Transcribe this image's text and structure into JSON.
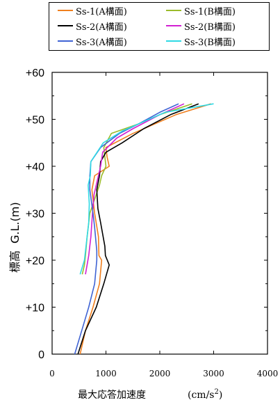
{
  "chart_data": {
    "type": "line",
    "title": "",
    "xlabel": "最大応答加速度",
    "xlabel_unit": "(cm/s",
    "xlabel_unit_exp": "2",
    "xlabel_unit_close": ")",
    "ylabel": "標高 G.L.(m)",
    "ylabel_parts": [
      "標高",
      "G.L.(m)"
    ],
    "xlim": [
      0,
      4000
    ],
    "ylim": [
      0,
      60
    ],
    "xticks": [
      "0",
      "1000",
      "2000",
      "3000",
      "4000"
    ],
    "yticks": [
      "0",
      "+10",
      "+20",
      "+30",
      "+40",
      "+50",
      "+60"
    ],
    "grid": false,
    "legend_position": "top",
    "series": [
      {
        "name": "Ss-1(A構面)",
        "color": "#f07f1e",
        "points": [
          [
            520,
            0
          ],
          [
            620,
            5
          ],
          [
            760,
            10
          ],
          [
            880,
            15
          ],
          [
            920,
            20
          ],
          [
            870,
            21
          ],
          [
            860,
            25
          ],
          [
            790,
            30
          ],
          [
            740,
            35
          ],
          [
            790,
            38
          ],
          [
            1060,
            40
          ],
          [
            1020,
            42
          ],
          [
            1000,
            44
          ],
          [
            1500,
            47
          ],
          [
            1900,
            49
          ],
          [
            2300,
            51
          ],
          [
            2950,
            53.3
          ]
        ]
      },
      {
        "name": "Ss-1(B構面)",
        "color": "#9bbb2a",
        "points": [
          [
            560,
            17
          ],
          [
            600,
            19
          ],
          [
            620,
            21
          ],
          [
            650,
            25
          ],
          [
            700,
            30
          ],
          [
            820,
            34
          ],
          [
            880,
            36
          ],
          [
            920,
            38
          ],
          [
            1000,
            40
          ],
          [
            980,
            42
          ],
          [
            960,
            44
          ],
          [
            1100,
            47
          ],
          [
            1600,
            49
          ],
          [
            2000,
            51
          ],
          [
            2600,
            53.3
          ]
        ]
      },
      {
        "name": "Ss-2(A構面)",
        "color": "#000000",
        "points": [
          [
            480,
            0
          ],
          [
            620,
            5
          ],
          [
            820,
            10
          ],
          [
            960,
            15
          ],
          [
            1060,
            19
          ],
          [
            990,
            21
          ],
          [
            980,
            23
          ],
          [
            900,
            28
          ],
          [
            850,
            31
          ],
          [
            830,
            35
          ],
          [
            880,
            38
          ],
          [
            900,
            41
          ],
          [
            1000,
            43
          ],
          [
            1300,
            45
          ],
          [
            1700,
            48
          ],
          [
            2200,
            51
          ],
          [
            2720,
            53.3
          ]
        ]
      },
      {
        "name": "Ss-2(B構面)",
        "color": "#d21fd2",
        "points": [
          [
            620,
            17
          ],
          [
            680,
            21
          ],
          [
            720,
            25
          ],
          [
            750,
            30
          ],
          [
            780,
            34
          ],
          [
            840,
            37
          ],
          [
            900,
            40
          ],
          [
            940,
            43
          ],
          [
            1200,
            46
          ],
          [
            1500,
            48
          ],
          [
            2000,
            51
          ],
          [
            2450,
            53.3
          ]
        ]
      },
      {
        "name": "Ss-3(A構面)",
        "color": "#3f63d4",
        "points": [
          [
            420,
            0
          ],
          [
            550,
            5
          ],
          [
            680,
            10
          ],
          [
            790,
            15
          ],
          [
            830,
            20
          ],
          [
            830,
            22
          ],
          [
            790,
            27
          ],
          [
            760,
            30
          ],
          [
            700,
            35
          ],
          [
            700,
            38
          ],
          [
            720,
            41
          ],
          [
            900,
            44
          ],
          [
            1250,
            47
          ],
          [
            1600,
            49
          ],
          [
            2000,
            51.5
          ],
          [
            2350,
            53.3
          ]
        ]
      },
      {
        "name": "Ss-3(B構面)",
        "color": "#2fd9e4",
        "points": [
          [
            520,
            17
          ],
          [
            600,
            20
          ],
          [
            640,
            24
          ],
          [
            680,
            28
          ],
          [
            690,
            32
          ],
          [
            670,
            36
          ],
          [
            710,
            38
          ],
          [
            720,
            41
          ],
          [
            950,
            45
          ],
          [
            1300,
            47.5
          ],
          [
            1700,
            49.5
          ],
          [
            2100,
            51.5
          ],
          [
            3000,
            53.3
          ]
        ]
      }
    ]
  }
}
